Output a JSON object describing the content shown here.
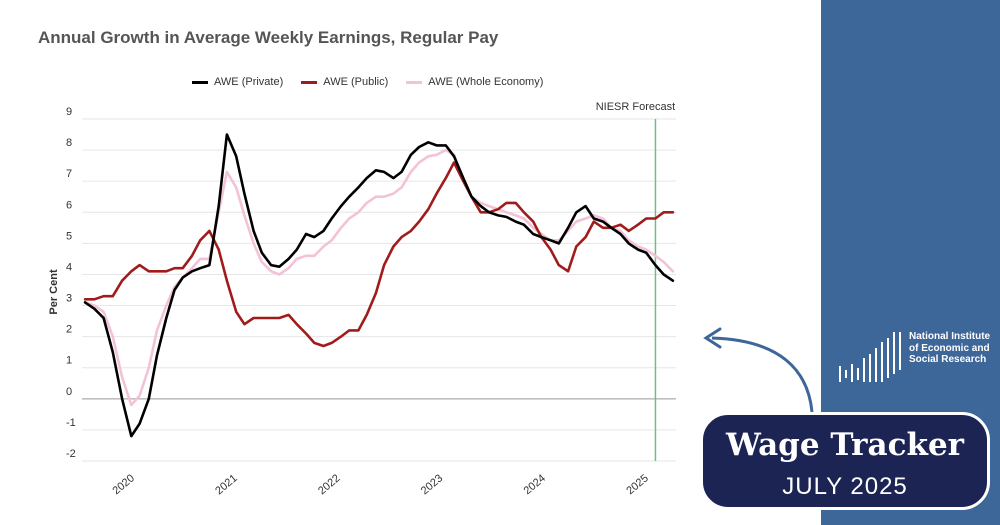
{
  "colors": {
    "private": "#000000",
    "public": "#a01c1c",
    "whole": "#f4c2d8",
    "forecast_line": "#6fbf7f",
    "panel": "#3d6699",
    "badge": "#1c2454"
  },
  "logo": {
    "text": "National Institute of Economic and Social Research",
    "icon": "bar-chart-logo-icon"
  },
  "badge": {
    "title": "Wage Tracker",
    "date": "JULY 2025"
  },
  "chart_data": {
    "type": "line",
    "title": "Annual Growth in Average Weekly Earnings, Regular Pay",
    "ylabel": "Per Cent",
    "xlabel": "",
    "ylim": [
      -2,
      9
    ],
    "xlim": [
      2019.6,
      2025.38
    ],
    "yticks": [
      -2,
      -1,
      0,
      1,
      2,
      3,
      4,
      5,
      6,
      7,
      8,
      9
    ],
    "xticks": [
      {
        "label": "2020",
        "value": 2020.0
      },
      {
        "label": "2021",
        "value": 2021.0
      },
      {
        "label": "2022",
        "value": 2022.0
      },
      {
        "label": "2023",
        "value": 2023.0
      },
      {
        "label": "2024",
        "value": 2024.0
      },
      {
        "label": "2025",
        "value": 2025.0
      }
    ],
    "grid": true,
    "legend_position": "top",
    "forecast": {
      "label": "NIESR Forecast",
      "x": 2025.18
    },
    "series": [
      {
        "name": "AWE (Private)",
        "color_key": "private",
        "x": [
          2019.63,
          2019.72,
          2019.81,
          2019.9,
          2019.99,
          2020.08,
          2020.16,
          2020.25,
          2020.33,
          2020.42,
          2020.5,
          2020.58,
          2020.67,
          2020.75,
          2020.84,
          2020.93,
          2021.01,
          2021.1,
          2021.18,
          2021.27,
          2021.35,
          2021.44,
          2021.52,
          2021.61,
          2021.69,
          2021.78,
          2021.86,
          2021.95,
          2022.03,
          2022.12,
          2022.2,
          2022.29,
          2022.37,
          2022.46,
          2022.54,
          2022.63,
          2022.71,
          2022.8,
          2022.88,
          2022.97,
          2023.05,
          2023.14,
          2023.22,
          2023.31,
          2023.39,
          2023.48,
          2023.56,
          2023.65,
          2023.73,
          2023.82,
          2023.9,
          2023.99,
          2024.07,
          2024.16,
          2024.24,
          2024.33,
          2024.41,
          2024.5,
          2024.58,
          2024.67,
          2024.75,
          2024.84,
          2024.92,
          2025.01,
          2025.09,
          2025.18,
          2025.26,
          2025.35
        ],
        "y": [
          3.1,
          2.9,
          2.6,
          1.5,
          0.0,
          -1.2,
          -0.8,
          0.0,
          1.4,
          2.6,
          3.5,
          3.9,
          4.1,
          4.2,
          4.3,
          6.2,
          8.5,
          7.8,
          6.6,
          5.4,
          4.7,
          4.3,
          4.25,
          4.5,
          4.8,
          5.3,
          5.2,
          5.4,
          5.8,
          6.2,
          6.5,
          6.8,
          7.1,
          7.35,
          7.3,
          7.1,
          7.3,
          7.85,
          8.1,
          8.25,
          8.15,
          8.15,
          7.8,
          7.1,
          6.5,
          6.2,
          6.0,
          5.9,
          5.85,
          5.7,
          5.6,
          5.3,
          5.2,
          5.1,
          5.0,
          5.5,
          6.0,
          6.2,
          5.8,
          5.7,
          5.5,
          5.3,
          5.0,
          4.8,
          4.7,
          4.3,
          4.0,
          3.8
        ]
      },
      {
        "name": "AWE (Public)",
        "color_key": "public",
        "x": [
          2019.63,
          2019.72,
          2019.81,
          2019.9,
          2019.99,
          2020.08,
          2020.16,
          2020.25,
          2020.33,
          2020.42,
          2020.5,
          2020.58,
          2020.67,
          2020.75,
          2020.84,
          2020.93,
          2021.01,
          2021.1,
          2021.18,
          2021.27,
          2021.35,
          2021.44,
          2021.52,
          2021.61,
          2021.69,
          2021.78,
          2021.86,
          2021.95,
          2022.03,
          2022.12,
          2022.2,
          2022.29,
          2022.37,
          2022.46,
          2022.54,
          2022.63,
          2022.71,
          2022.8,
          2022.88,
          2022.97,
          2023.05,
          2023.14,
          2023.22,
          2023.31,
          2023.39,
          2023.48,
          2023.56,
          2023.65,
          2023.73,
          2023.82,
          2023.9,
          2023.99,
          2024.07,
          2024.16,
          2024.24,
          2024.33,
          2024.41,
          2024.5,
          2024.58,
          2024.67,
          2024.75,
          2024.84,
          2024.92,
          2025.01,
          2025.09,
          2025.18,
          2025.26,
          2025.35
        ],
        "y": [
          3.2,
          3.2,
          3.3,
          3.3,
          3.8,
          4.1,
          4.3,
          4.1,
          4.1,
          4.1,
          4.2,
          4.2,
          4.6,
          5.1,
          5.4,
          4.8,
          3.8,
          2.8,
          2.4,
          2.6,
          2.6,
          2.6,
          2.6,
          2.7,
          2.4,
          2.1,
          1.8,
          1.7,
          1.8,
          2.0,
          2.2,
          2.2,
          2.7,
          3.4,
          4.3,
          4.9,
          5.2,
          5.4,
          5.7,
          6.1,
          6.6,
          7.1,
          7.6,
          7.0,
          6.5,
          6.0,
          6.0,
          6.1,
          6.3,
          6.3,
          6.0,
          5.7,
          5.2,
          4.8,
          4.3,
          4.1,
          4.9,
          5.2,
          5.7,
          5.5,
          5.5,
          5.6,
          5.4,
          5.6,
          5.8,
          5.8,
          6.0,
          6.0
        ]
      },
      {
        "name": "AWE (Whole Economy)",
        "color_key": "whole",
        "x": [
          2019.63,
          2019.72,
          2019.81,
          2019.9,
          2019.99,
          2020.08,
          2020.16,
          2020.25,
          2020.33,
          2020.42,
          2020.5,
          2020.58,
          2020.67,
          2020.75,
          2020.84,
          2020.93,
          2021.01,
          2021.1,
          2021.18,
          2021.27,
          2021.35,
          2021.44,
          2021.52,
          2021.61,
          2021.69,
          2021.78,
          2021.86,
          2021.95,
          2022.03,
          2022.12,
          2022.2,
          2022.29,
          2022.37,
          2022.46,
          2022.54,
          2022.63,
          2022.71,
          2022.8,
          2022.88,
          2022.97,
          2023.05,
          2023.14,
          2023.22,
          2023.31,
          2023.39,
          2023.48,
          2023.56,
          2023.65,
          2023.73,
          2023.82,
          2023.9,
          2023.99,
          2024.07,
          2024.16,
          2024.24,
          2024.33,
          2024.41,
          2024.5,
          2024.58,
          2024.67,
          2024.75,
          2024.84,
          2024.92,
          2025.01,
          2025.09,
          2025.18,
          2025.26,
          2025.35
        ],
        "y": [
          3.1,
          3.0,
          2.8,
          2.0,
          0.7,
          -0.2,
          0.1,
          1.0,
          2.2,
          3.0,
          3.6,
          3.9,
          4.2,
          4.5,
          4.5,
          6.0,
          7.3,
          6.8,
          5.9,
          5.0,
          4.4,
          4.1,
          4.0,
          4.2,
          4.5,
          4.6,
          4.6,
          4.9,
          5.1,
          5.5,
          5.8,
          6.0,
          6.3,
          6.5,
          6.5,
          6.6,
          6.8,
          7.3,
          7.6,
          7.8,
          7.85,
          8.0,
          7.85,
          7.0,
          6.5,
          6.3,
          6.2,
          6.1,
          6.0,
          5.9,
          5.8,
          5.5,
          5.3,
          5.1,
          5.1,
          5.4,
          5.7,
          5.8,
          5.9,
          5.8,
          5.5,
          5.4,
          5.1,
          4.9,
          4.8,
          4.6,
          4.4,
          4.1
        ]
      }
    ]
  }
}
